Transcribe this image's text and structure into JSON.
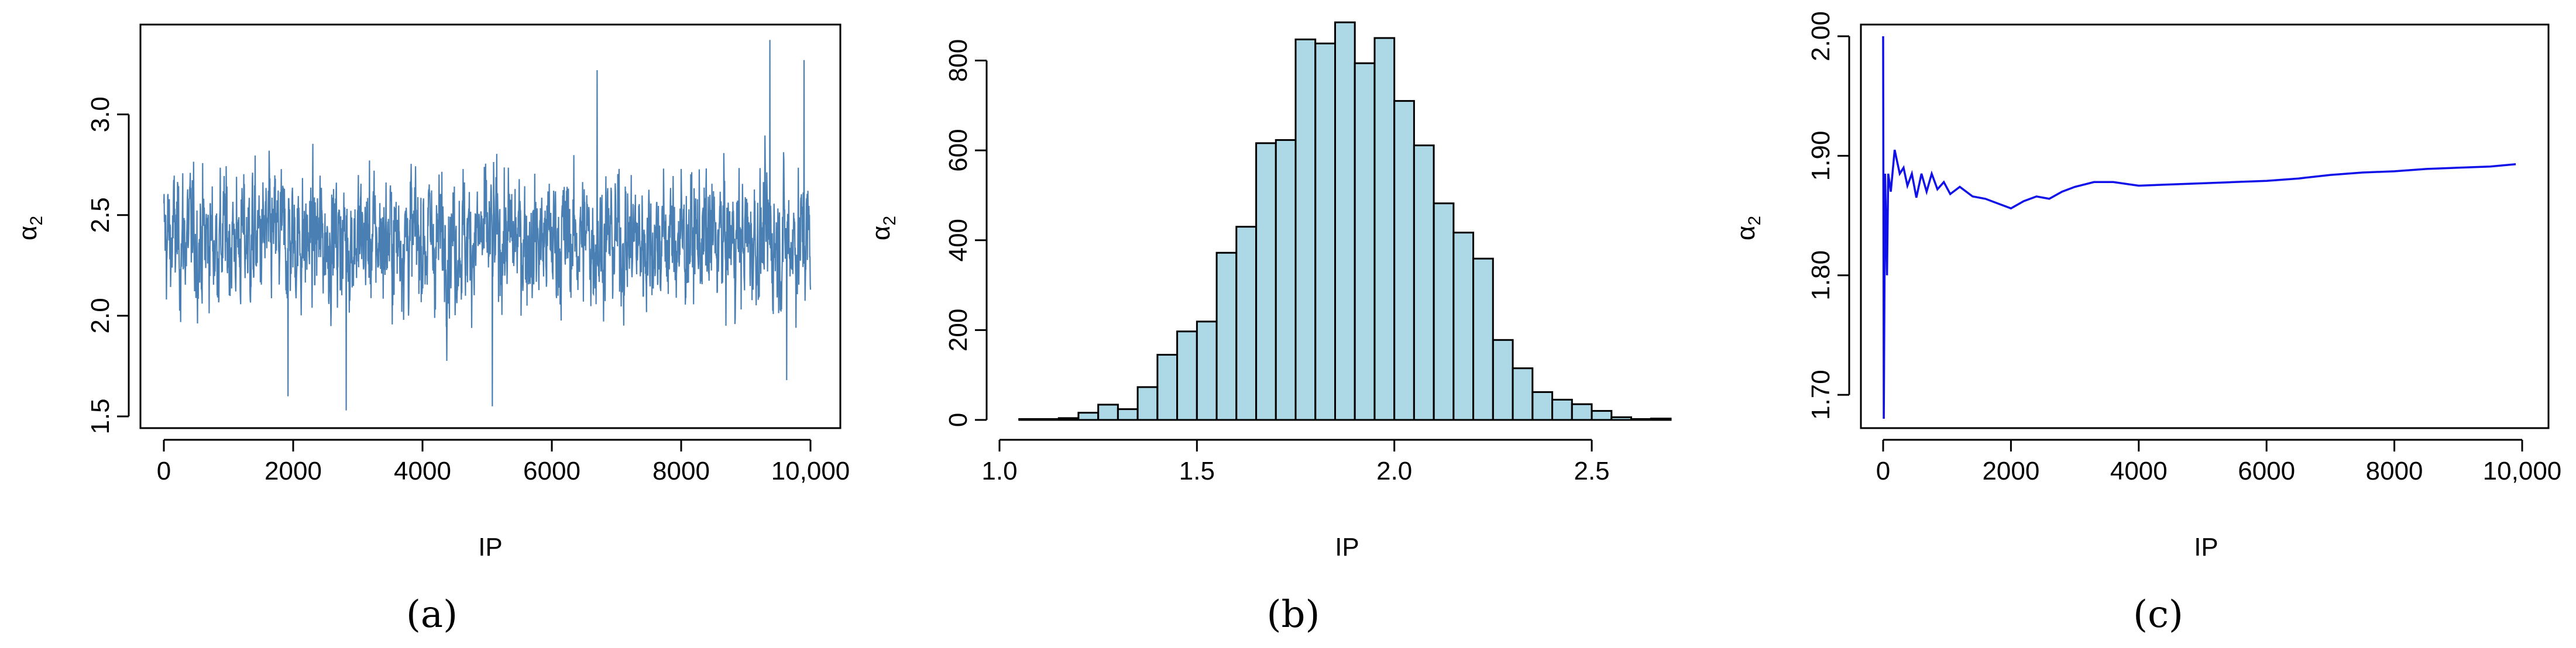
{
  "colors": {
    "trace": "#4a7fb4",
    "hist_fill": "#add8e6",
    "hist_edge": "#000000",
    "ergodic": "#1010e8"
  },
  "chart_data": [
    {
      "type": "line",
      "caption": "(a)",
      "xlabel": "IP",
      "ylabel_base": "α",
      "ylabel_sub": "2",
      "xlim": [
        0,
        10000
      ],
      "ylim": [
        1.5,
        3.4
      ],
      "xticks": [
        0,
        2000,
        4000,
        6000,
        8000,
        10000
      ],
      "xtick_labels": [
        "0",
        "2000",
        "4000",
        "6000",
        "8000",
        "10,000"
      ],
      "yticks": [
        1.5,
        2.0,
        2.5,
        3.0
      ],
      "ytick_labels": [
        "1.5",
        "2.0",
        "2.5",
        "3.0"
      ],
      "box": true,
      "grid": false,
      "series": [
        {
          "n_iterations": 10000,
          "center": 2.38,
          "min": 1.53,
          "max": 3.37,
          "spikes": [
            {
              "x": 2820,
              "y": 1.53
            },
            {
              "x": 5080,
              "y": 1.55
            },
            {
              "x": 9370,
              "y": 3.37
            },
            {
              "x": 9900,
              "y": 3.27
            },
            {
              "x": 6700,
              "y": 3.22
            },
            {
              "x": 1920,
              "y": 1.6
            },
            {
              "x": 9630,
              "y": 1.68
            }
          ]
        }
      ]
    },
    {
      "type": "bar",
      "subtype": "histogram",
      "caption": "(b)",
      "xlabel": "IP",
      "ylabel_base": "α",
      "ylabel_sub": "2",
      "xlim": [
        1.0,
        2.7
      ],
      "ylim": [
        0,
        880
      ],
      "xticks": [
        1.0,
        1.5,
        2.0,
        2.5
      ],
      "xtick_labels": [
        "1.0",
        "1.5",
        "2.0",
        "2.5"
      ],
      "yticks": [
        0,
        200,
        400,
        600,
        800
      ],
      "ytick_labels": [
        "0",
        "200",
        "400",
        "600",
        "800"
      ],
      "box": false,
      "grid": false,
      "bin_edges": [
        1.05,
        1.1,
        1.15,
        1.2,
        1.25,
        1.3,
        1.35,
        1.4,
        1.45,
        1.5,
        1.55,
        1.6,
        1.65,
        1.7,
        1.75,
        1.8,
        1.85,
        1.9,
        1.95,
        2.0,
        2.05,
        2.1,
        2.15,
        2.2,
        2.25,
        2.3,
        2.35,
        2.4,
        2.45,
        2.5,
        2.55,
        2.6,
        2.65,
        2.7
      ],
      "values": [
        2,
        2,
        4,
        16,
        34,
        24,
        73,
        145,
        197,
        219,
        372,
        430,
        616,
        623,
        847,
        838,
        885,
        794,
        850,
        710,
        611,
        482,
        417,
        359,
        178,
        115,
        62,
        45,
        35,
        20,
        6,
        2,
        3
      ]
    },
    {
      "type": "line",
      "caption": "(c)",
      "xlabel": "IP",
      "ylabel_base": "α",
      "ylabel_sub": "2",
      "xlim": [
        0,
        10000
      ],
      "ylim": [
        1.68,
        2.0
      ],
      "xticks": [
        0,
        2000,
        4000,
        6000,
        8000,
        10000
      ],
      "xtick_labels": [
        "0",
        "2000",
        "4000",
        "6000",
        "8000",
        "10,000"
      ],
      "yticks": [
        1.7,
        1.8,
        1.9,
        2.0
      ],
      "ytick_labels": [
        "1.70",
        "1.80",
        "1.90",
        "2.00"
      ],
      "box": true,
      "grid": false,
      "series": [
        {
          "points": [
            [
              0,
              2.0
            ],
            [
              10,
              1.68
            ],
            [
              30,
              1.885
            ],
            [
              60,
              1.8
            ],
            [
              80,
              1.885
            ],
            [
              120,
              1.87
            ],
            [
              180,
              1.905
            ],
            [
              220,
              1.895
            ],
            [
              260,
              1.885
            ],
            [
              320,
              1.89
            ],
            [
              380,
              1.875
            ],
            [
              450,
              1.885
            ],
            [
              520,
              1.865
            ],
            [
              600,
              1.885
            ],
            [
              680,
              1.87
            ],
            [
              760,
              1.885
            ],
            [
              850,
              1.872
            ],
            [
              950,
              1.878
            ],
            [
              1050,
              1.868
            ],
            [
              1200,
              1.874
            ],
            [
              1400,
              1.866
            ],
            [
              1600,
              1.864
            ],
            [
              1800,
              1.86
            ],
            [
              2000,
              1.856
            ],
            [
              2200,
              1.862
            ],
            [
              2400,
              1.866
            ],
            [
              2600,
              1.864
            ],
            [
              2800,
              1.87
            ],
            [
              3000,
              1.874
            ],
            [
              3300,
              1.878
            ],
            [
              3600,
              1.878
            ],
            [
              4000,
              1.875
            ],
            [
              4500,
              1.876
            ],
            [
              5000,
              1.877
            ],
            [
              5500,
              1.878
            ],
            [
              6000,
              1.879
            ],
            [
              6500,
              1.881
            ],
            [
              7000,
              1.884
            ],
            [
              7500,
              1.886
            ],
            [
              8000,
              1.887
            ],
            [
              8500,
              1.889
            ],
            [
              9000,
              1.89
            ],
            [
              9500,
              1.891
            ],
            [
              9900,
              1.893
            ]
          ]
        }
      ]
    }
  ]
}
